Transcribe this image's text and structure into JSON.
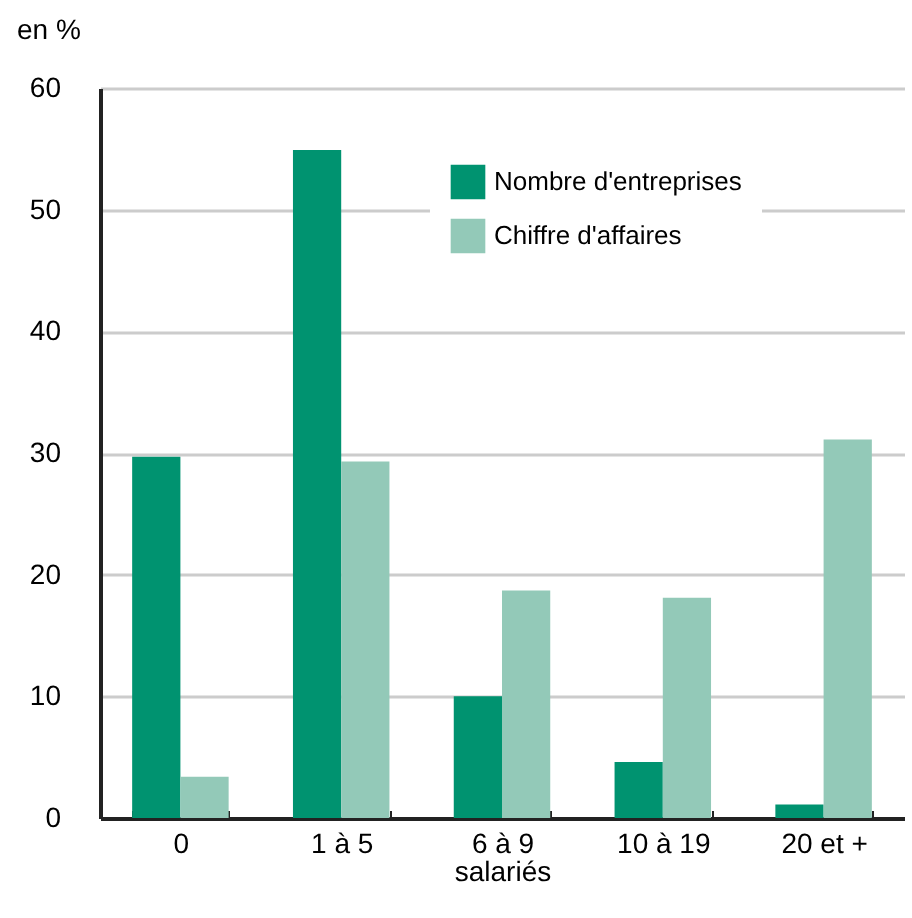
{
  "chart_data": {
    "type": "bar",
    "ylabel": "en %",
    "xlabel": "salariés",
    "categories": [
      "0",
      "1 à 5",
      "6 à 9",
      "10 à 19",
      "20 et +"
    ],
    "series": [
      {
        "name": "Nombre d'entreprises",
        "color": "#009370",
        "values": [
          29.7,
          54.9,
          10.0,
          4.6,
          1.1
        ]
      },
      {
        "name": "Chiffre d'affaires",
        "color": "#93c9b8",
        "values": [
          3.4,
          29.3,
          18.7,
          18.1,
          31.1
        ]
      }
    ],
    "ylim": [
      0,
      60
    ],
    "yticks": [
      0,
      10,
      20,
      30,
      40,
      50,
      60
    ],
    "grid": "y",
    "legend": "top"
  }
}
